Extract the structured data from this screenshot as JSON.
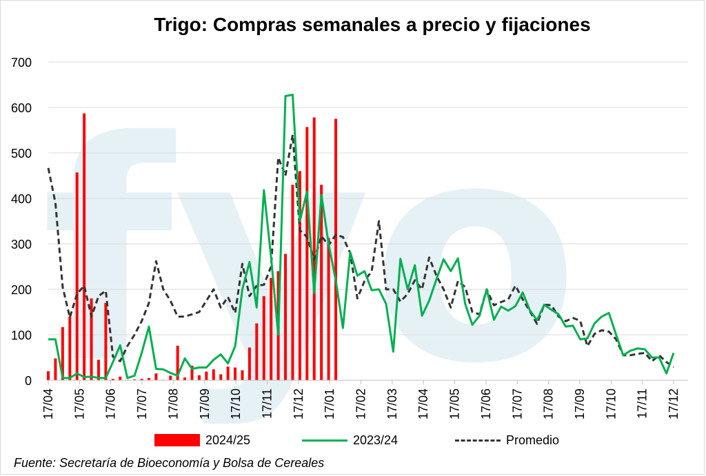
{
  "chart_data": {
    "type": "bar+line",
    "title": "Trigo: Compras semanales a precio y fijaciones",
    "y_ticks": [
      0,
      100,
      200,
      300,
      400,
      500,
      600,
      700
    ],
    "ylim": [
      0,
      700
    ],
    "x_ticks": [
      "17/04",
      "17/05",
      "17/06",
      "17/07",
      "17/08",
      "17/09",
      "17/10",
      "17/11",
      "17/12",
      "17/01",
      "17/02",
      "17/03",
      "17/04",
      "17/05",
      "17/06",
      "17/07",
      "17/08",
      "17/09",
      "17/10",
      "17/11",
      "17/12"
    ],
    "weeks_per_month": 4.35,
    "grid": true,
    "legend_position": "bottom",
    "watermark": "fyo",
    "series": [
      {
        "name": "2024/25",
        "kind": "bar",
        "color": "#ff0000",
        "values": [
          20,
          48,
          117,
          140,
          457,
          587,
          180,
          45,
          170,
          3,
          8,
          1,
          2,
          3,
          5,
          15,
          1,
          10,
          76,
          6,
          32,
          11,
          19,
          24,
          13,
          30,
          28,
          22,
          72,
          125,
          185,
          225,
          240,
          278,
          430,
          460,
          557,
          578,
          430,
          313,
          575
        ]
      },
      {
        "name": "2023/24",
        "kind": "line",
        "color": "#00b050",
        "values": [
          90,
          90,
          5,
          5,
          15,
          7,
          8,
          5,
          5,
          40,
          77,
          5,
          10,
          60,
          118,
          25,
          24,
          16,
          10,
          48,
          25,
          28,
          28,
          45,
          57,
          37,
          75,
          200,
          260,
          160,
          418,
          270,
          100,
          625,
          628,
          350,
          415,
          192,
          408,
          300,
          220,
          115,
          282,
          230,
          240,
          198,
          200,
          168,
          63,
          267,
          200,
          253,
          142,
          175,
          222,
          266,
          240,
          268,
          168,
          122,
          142,
          200,
          133,
          162,
          153,
          163,
          193,
          154,
          132,
          166,
          155,
          145,
          118,
          120,
          90,
          92,
          125,
          140,
          148,
          100,
          55,
          65,
          70,
          68,
          50,
          50,
          15,
          60
        ]
      },
      {
        "name": "Promedio",
        "kind": "line",
        "style": "dashed",
        "color": "#333333",
        "values": [
          467,
          390,
          205,
          138,
          190,
          208,
          140,
          185,
          197,
          52,
          42,
          75,
          100,
          130,
          170,
          262,
          200,
          175,
          140,
          140,
          145,
          150,
          175,
          200,
          160,
          183,
          148,
          256,
          185,
          208,
          210,
          250,
          490,
          450,
          540,
          330,
          315,
          265,
          317,
          297,
          320,
          315,
          280,
          180,
          218,
          240,
          350,
          200,
          200,
          173,
          190,
          220,
          200,
          270,
          230,
          200,
          160,
          218,
          205,
          150,
          145,
          200,
          165,
          172,
          178,
          208,
          178,
          152,
          124,
          166,
          165,
          140,
          130,
          137,
          131,
          75,
          102,
          110,
          107,
          90,
          55,
          55,
          58,
          60,
          42,
          55,
          40,
          29
        ]
      }
    ]
  },
  "source": "Fuente: Secretaría de Bioeconomía y Bolsa de Cereales"
}
